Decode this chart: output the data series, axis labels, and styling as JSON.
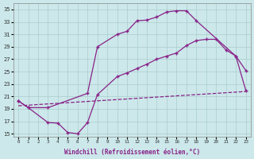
{
  "bg_color": "#cce8ea",
  "grid_color": "#aacccc",
  "line_color": "#882288",
  "xlabel": "Windchill (Refroidissement éolien,°C)",
  "xlim": [
    -0.5,
    23.5
  ],
  "ylim": [
    14.5,
    36
  ],
  "yticks": [
    15,
    17,
    19,
    21,
    23,
    25,
    27,
    29,
    31,
    33,
    35
  ],
  "xticks": [
    0,
    1,
    2,
    3,
    4,
    5,
    6,
    7,
    8,
    9,
    10,
    11,
    12,
    13,
    14,
    15,
    16,
    17,
    18,
    19,
    20,
    21,
    22,
    23
  ],
  "line1_x": [
    0,
    1,
    3,
    7,
    8,
    10,
    11,
    12,
    13,
    14,
    15,
    16,
    17,
    18,
    22,
    23
  ],
  "line1_y": [
    20.3,
    19.2,
    19.2,
    21.5,
    29.0,
    31.0,
    31.5,
    33.2,
    33.3,
    33.8,
    34.6,
    34.8,
    34.8,
    33.2,
    27.5,
    25.2
  ],
  "line2_x": [
    0,
    1,
    3,
    4,
    5,
    6,
    7,
    8,
    10,
    11,
    12,
    13,
    14,
    15,
    16,
    17,
    18,
    19,
    20,
    21,
    22,
    23
  ],
  "line2_y": [
    20.3,
    19.2,
    16.8,
    16.7,
    15.2,
    15.0,
    16.8,
    21.3,
    24.2,
    24.8,
    25.5,
    26.2,
    27.0,
    27.5,
    28.0,
    29.2,
    30.0,
    30.2,
    30.2,
    28.5,
    27.5,
    22.0
  ],
  "line3_x": [
    0,
    23
  ],
  "line3_y": [
    19.5,
    21.8
  ]
}
